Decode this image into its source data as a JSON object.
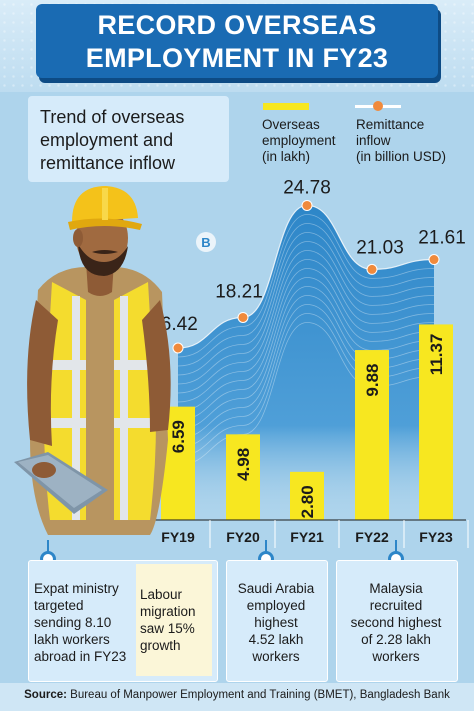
{
  "header": {
    "title_line1": "RECORD OVERSEAS",
    "title_line2": "EMPLOYMENT IN FY23"
  },
  "subtitle": "Trend of overseas employment and remittance inflow",
  "legend": {
    "bars_label_l1": "Overseas",
    "bars_label_l2": "employment",
    "bars_label_l3": "(in lakh)",
    "line_label_l1": "Remittance",
    "line_label_l2": "inflow",
    "line_label_l3": "(in billion USD)"
  },
  "chart_data": {
    "type": "bar",
    "categories": [
      "FY19",
      "FY20",
      "FY21",
      "FY22",
      "FY23"
    ],
    "series": [
      {
        "name": "Overseas employment (in lakh)",
        "type": "bar",
        "values": [
          6.59,
          4.98,
          2.8,
          9.88,
          11.37
        ],
        "labels": [
          "6.59",
          "4.98",
          "2.80",
          "9.88",
          "11.37"
        ]
      },
      {
        "name": "Remittance inflow (in billion USD)",
        "type": "line",
        "values": [
          16.42,
          18.21,
          24.78,
          21.03,
          21.61
        ],
        "labels": [
          "16.42",
          "18.21",
          "24.78",
          "21.03",
          "21.61"
        ]
      }
    ],
    "colors": {
      "bar": "#f7e720",
      "line_dot": "#f08a3c",
      "area": "#2d86c8"
    }
  },
  "cards": [
    {
      "text": [
        "Expat ministry",
        "targeted",
        "sending 8.10",
        "lakh workers",
        "abroad in FY23"
      ]
    },
    {
      "text": [
        "Labour",
        "migration",
        "saw 15%",
        "growth"
      ]
    },
    {
      "text": [
        "Saudi Arabia",
        "employed",
        "highest",
        "4.52 lakh",
        "workers"
      ]
    },
    {
      "text": [
        "Malaysia",
        "recruited",
        "second highest",
        "of 2.28 lakh",
        "workers"
      ]
    }
  ],
  "source": {
    "label": "Source:",
    "text": "Bureau of Manpower Employment and Training (BMET), Bangladesh Bank"
  },
  "watermark": "B",
  "icons": [
    "worker-illustration",
    "logo-mark-icon",
    "pin-icon"
  ]
}
